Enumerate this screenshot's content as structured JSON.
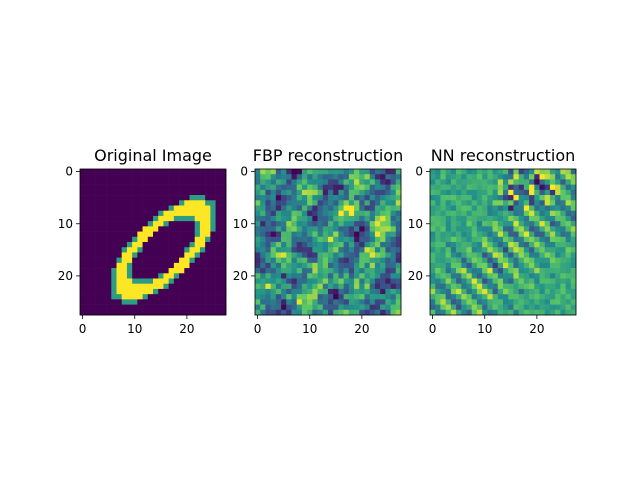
{
  "figure": {
    "background": "#ffffff",
    "colormap": "viridis",
    "colormap_colors": [
      "#440154",
      "#3b528b",
      "#21918c",
      "#5ec962",
      "#fde725"
    ]
  },
  "chart_data": [
    {
      "type": "heatmap",
      "title": "Original Image",
      "xlabel": "",
      "ylabel": "",
      "xticks": [
        0,
        10,
        20
      ],
      "yticks": [
        0,
        10,
        20
      ],
      "grid_size": [
        28,
        28
      ],
      "extent": [
        -0.5,
        27.5,
        27.5,
        -0.5
      ],
      "value_range": [
        0,
        1
      ],
      "content": "handwritten digit zero drawn as a tilted ellipse",
      "grid": false
    },
    {
      "type": "heatmap",
      "title": "FBP reconstruction",
      "xlabel": "",
      "ylabel": "",
      "xticks": [
        0,
        10,
        20
      ],
      "yticks": [
        0,
        10,
        20
      ],
      "grid_size": [
        28,
        28
      ],
      "extent": [
        -0.5,
        27.5,
        27.5,
        -0.5
      ],
      "value_range": [
        0,
        1
      ],
      "content": "noisy filtered back-projection reconstruction",
      "grid": false
    },
    {
      "type": "heatmap",
      "title": "NN reconstruction",
      "xlabel": "",
      "ylabel": "",
      "xticks": [
        0,
        10,
        20
      ],
      "yticks": [
        0,
        10,
        20
      ],
      "grid_size": [
        28,
        28
      ],
      "extent": [
        -0.5,
        27.5,
        27.5,
        -0.5
      ],
      "value_range": [
        0,
        1
      ],
      "content": "neural network reconstruction with streak artifacts",
      "grid": false
    }
  ]
}
